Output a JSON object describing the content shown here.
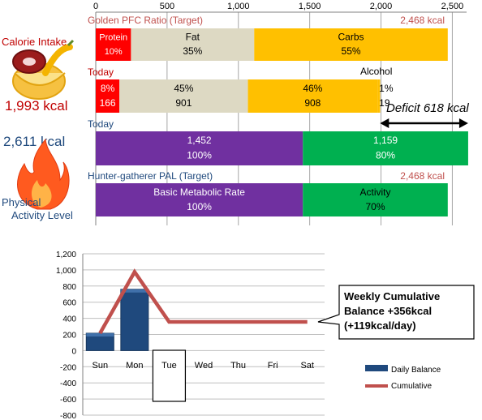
{
  "colors": {
    "protein": "#ff0000",
    "fat": "#ddd9c3",
    "carbs": "#ffc000",
    "metabolic": "#7030a0",
    "activity": "#00b050",
    "daily_bar": "#1f497d",
    "cumulative_line": "#c0504d",
    "intake_text": "#c00000",
    "burn_text": "#1f497d",
    "label_red": "#c0504d",
    "label_blue": "#1f497d"
  },
  "left": {
    "calorie_intake_label": "Calorie Intake",
    "calorie_intake_value": "1,993 kcal",
    "burn_value": "2,611 kcal",
    "pal_label_line1": "Physical",
    "pal_label_line2": "Activity Level",
    "food_icon": "meat-and-banana-bowl-icon",
    "fire_icon": "flame-icon"
  },
  "top_chart": {
    "x_ticks": [
      "0",
      "500",
      "1,000",
      "1,500",
      "2,000",
      "2,500"
    ],
    "xlim": [
      0,
      2600
    ],
    "rows": [
      {
        "label": "Golden PFC Ratio (Target)",
        "right_label": "2,468 kcal",
        "segments": [
          {
            "key": "protein",
            "value": 247,
            "line1": "Protein",
            "line2": "10%"
          },
          {
            "key": "fat",
            "value": 864,
            "line1": "Fat",
            "line2": "35%"
          },
          {
            "key": "carbs",
            "value": 1357,
            "line1": "Carbs",
            "line2": "55%"
          }
        ]
      },
      {
        "label": "Today",
        "right_label": "",
        "segments": [
          {
            "key": "protein",
            "value": 166,
            "line1": "8%",
            "line2": "166"
          },
          {
            "key": "fat",
            "value": 901,
            "line1": "45%",
            "line2": "901"
          },
          {
            "key": "carbs",
            "value": 908,
            "line1": "46%",
            "line2": "908"
          },
          {
            "key": "alcohol",
            "value": 19,
            "line1": "1%",
            "line2": "19"
          }
        ],
        "alcohol_label": "Alcohol"
      },
      {
        "label": "Today",
        "right_label": "",
        "segments": [
          {
            "key": "metabolic",
            "value": 1452,
            "line1": "1,452",
            "line2": "100%"
          },
          {
            "key": "activity",
            "value": 1159,
            "line1": "1,159",
            "line2": "80%"
          }
        ]
      },
      {
        "label": "Hunter-gatherer  PAL (Target)",
        "right_label": "2,468 kcal",
        "segments": [
          {
            "key": "metabolic",
            "value": 1452,
            "line1": "Basic Metabolic Rate",
            "line2": "100%"
          },
          {
            "key": "activity",
            "value": 1016,
            "line1": "Activity",
            "line2": "70%"
          }
        ]
      }
    ],
    "deficit": {
      "label": "Deficit 618 kcal",
      "from": 1993,
      "to": 2611
    }
  },
  "bottom_chart": {
    "type": "bar",
    "categories": [
      "Sun",
      "Mon",
      "Tue",
      "Wed",
      "Thu",
      "Fri",
      "Sat"
    ],
    "ylim": [
      -800,
      1200
    ],
    "y_ticks": [
      "1,200",
      "1,000",
      "800",
      "600",
      "400",
      "200",
      "0",
      "-200",
      "-400",
      "-600",
      "-800"
    ],
    "series": [
      {
        "name": "Daily Balance",
        "type": "bar",
        "values": [
          215,
          760,
          null,
          null,
          null,
          null,
          null
        ]
      },
      {
        "name": "Cumulative",
        "type": "line",
        "values": [
          215,
          975,
          356,
          356,
          356,
          356,
          356
        ]
      }
    ],
    "selected_category": "Tue",
    "callout_line1": "Weekly Cumulative",
    "callout_line2": "Balance +356kcal",
    "callout_line3": "(+119kcal/day)",
    "legend_daily": "Daily Balance",
    "legend_cumulative": "Cumulative"
  }
}
